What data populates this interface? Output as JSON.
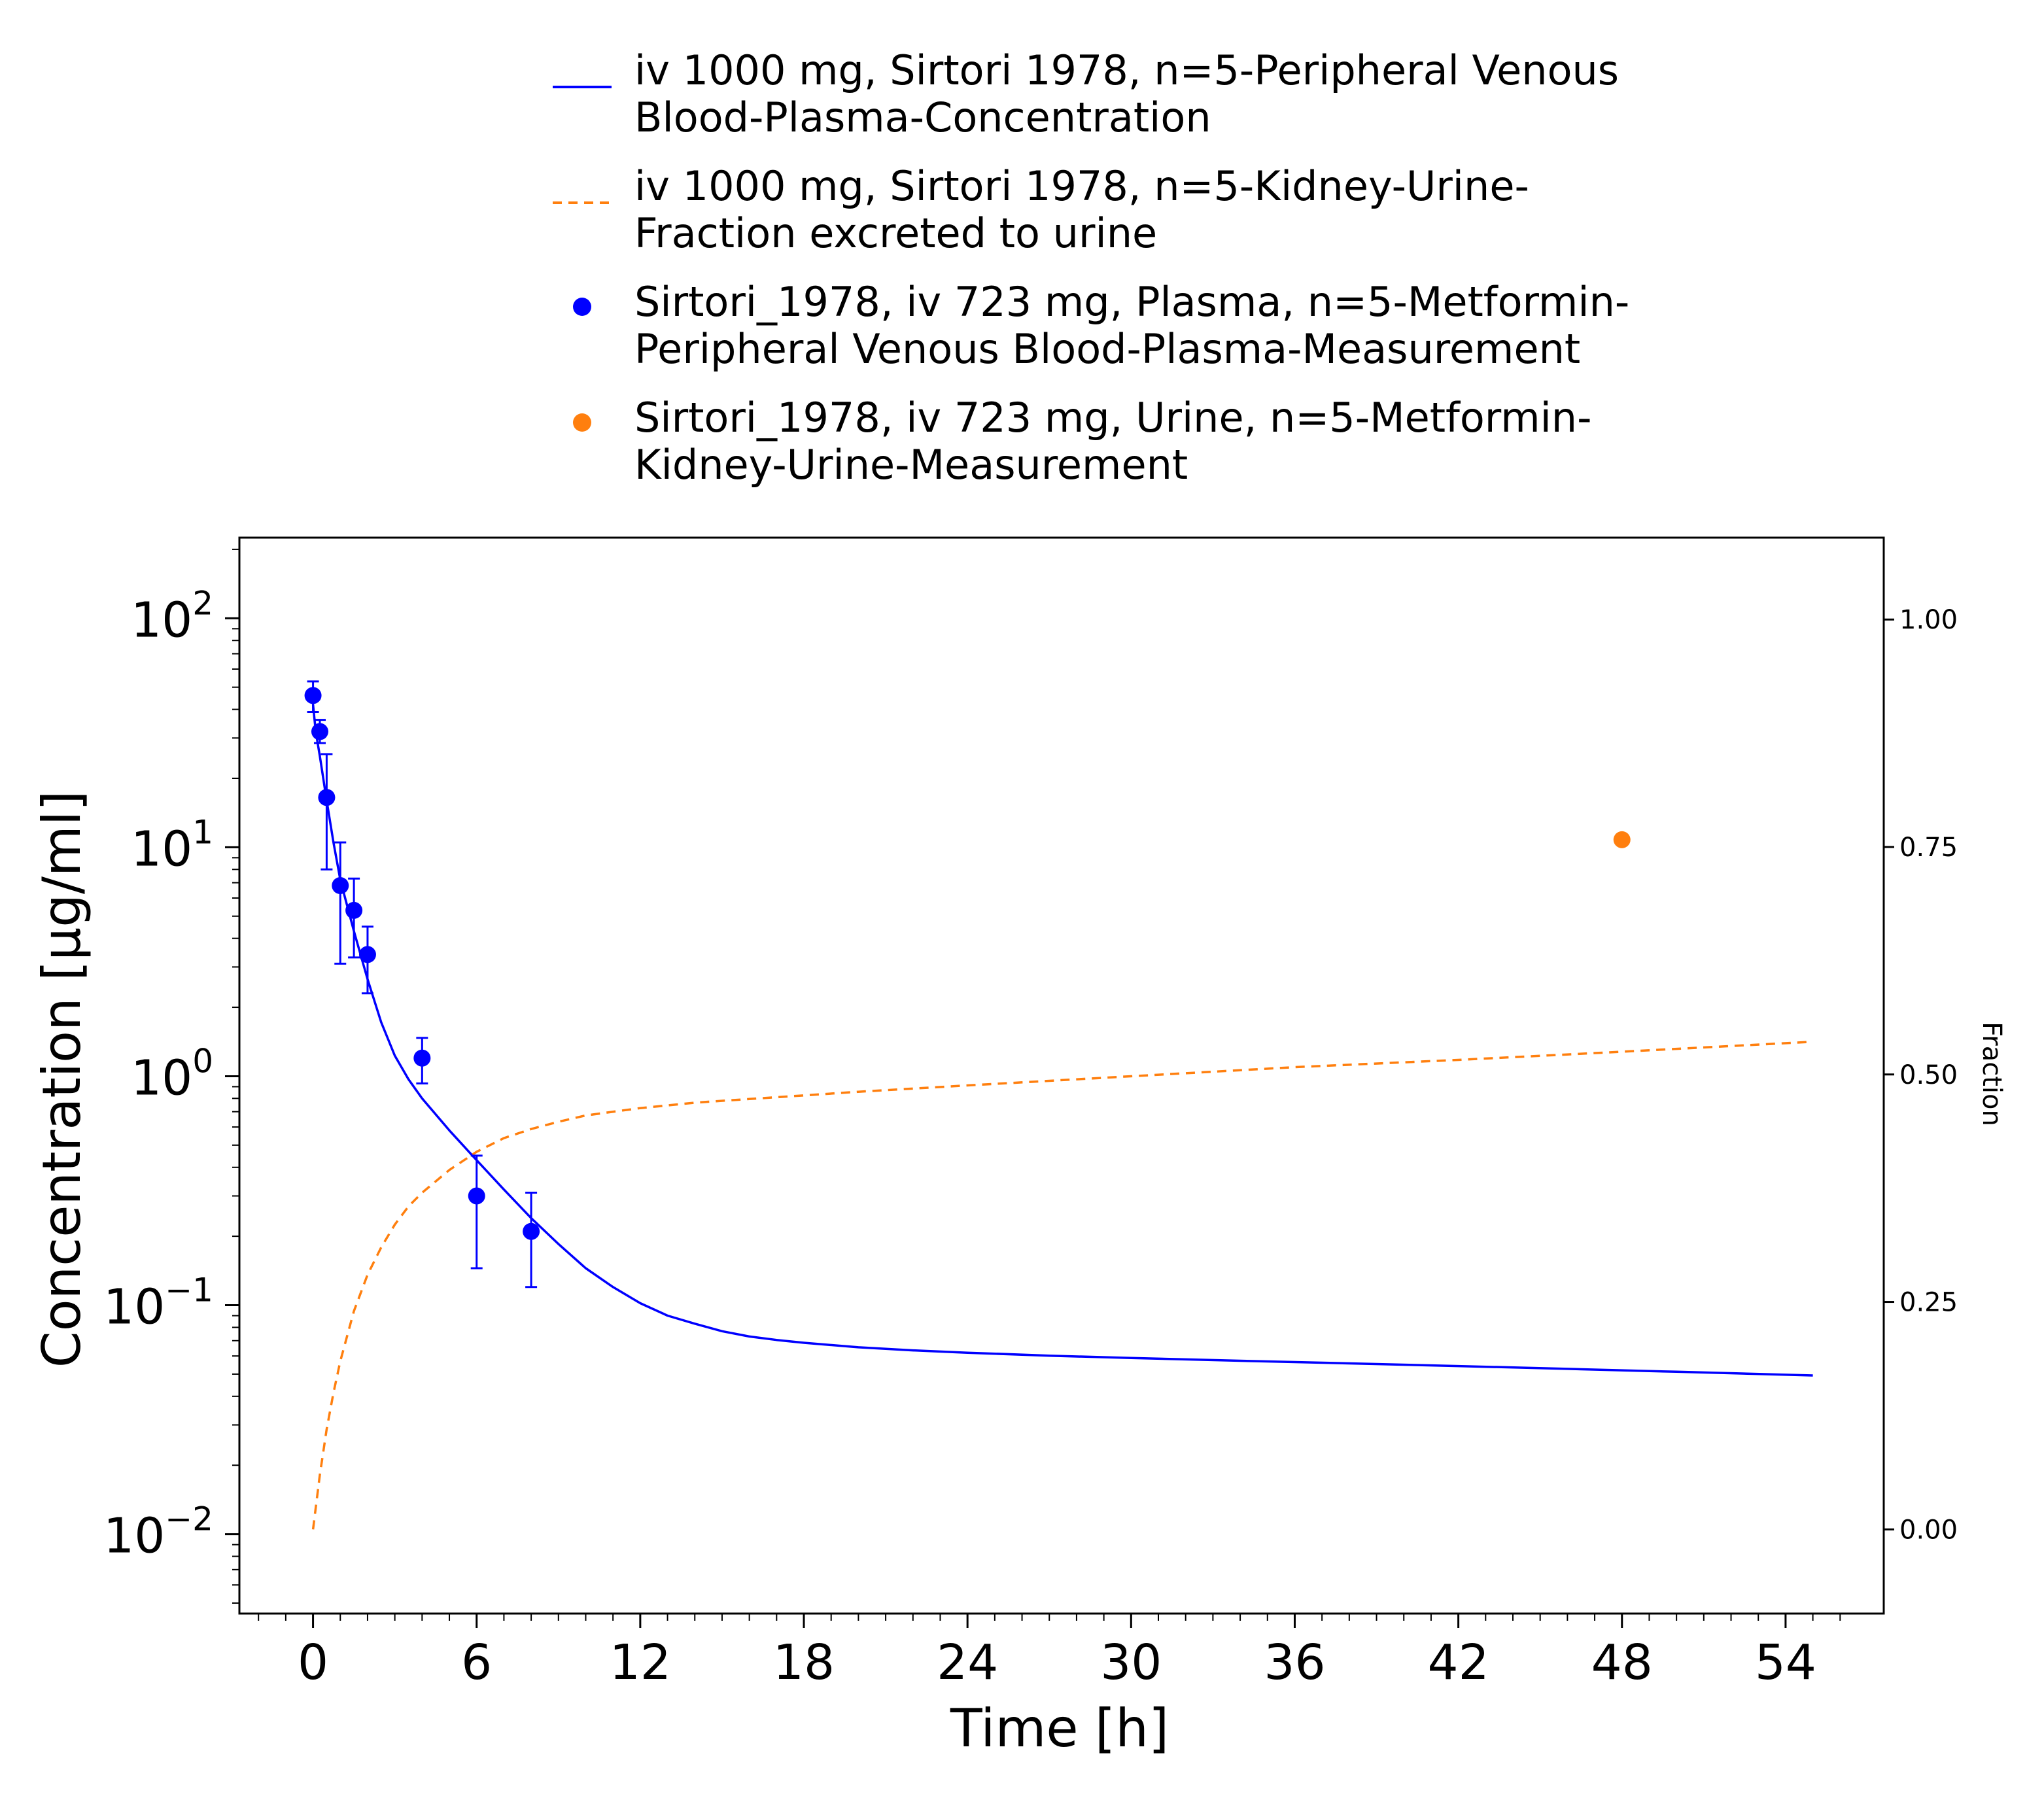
{
  "chart_data": {
    "type": "line",
    "xlabel": "Time [h]",
    "ylabel": "Concentration [µg/ml]",
    "y2label": "Fraction",
    "xlim": [
      -2.7,
      57.6
    ],
    "ylim": [
      0.0045,
      225
    ],
    "y2lim": [
      -0.0925,
      1.09
    ],
    "yscale": "log",
    "x_ticks": [
      "0",
      "6",
      "12",
      "18",
      "24",
      "30",
      "36",
      "42",
      "48",
      "54"
    ],
    "y_ticks": [
      {
        "value": 0.01,
        "base": "10",
        "exp": "−2"
      },
      {
        "value": 0.1,
        "base": "10",
        "exp": "−1"
      },
      {
        "value": 1,
        "base": "10",
        "exp": "0"
      },
      {
        "value": 10,
        "base": "10",
        "exp": "1"
      },
      {
        "value": 100,
        "base": "10",
        "exp": "2"
      }
    ],
    "y2_ticks": [
      "0.00",
      "0.25",
      "0.50",
      "0.75",
      "1.00"
    ],
    "grid": false,
    "legend_position": "top-center",
    "series": [
      {
        "name": "iv 1000 mg, Sirtori 1978, n=5-Peripheral Venous Blood-Plasma-Concentration",
        "kind": "line",
        "axis": "left",
        "color": "#0000ff",
        "x": [
          0,
          0.1,
          0.25,
          0.5,
          0.75,
          1,
          1.5,
          2,
          2.5,
          3,
          3.5,
          4,
          5,
          6,
          7,
          8,
          9,
          10,
          11,
          12,
          13,
          14,
          15,
          16,
          17,
          18,
          20,
          22,
          24,
          27,
          30,
          34,
          38,
          42,
          46,
          50,
          55
        ],
        "y": [
          42,
          32,
          25,
          16,
          10.5,
          7.2,
          4.3,
          2.65,
          1.72,
          1.23,
          0.97,
          0.8,
          0.58,
          0.43,
          0.32,
          0.24,
          0.185,
          0.145,
          0.12,
          0.102,
          0.09,
          0.083,
          0.077,
          0.073,
          0.0705,
          0.0685,
          0.0655,
          0.0635,
          0.062,
          0.0602,
          0.0588,
          0.0572,
          0.0557,
          0.0542,
          0.0527,
          0.0512,
          0.0493
        ]
      },
      {
        "name": "iv 1000 mg, Sirtori 1978, n=5-Kidney-Urine-Fraction excreted to urine",
        "kind": "dashed-line",
        "axis": "right",
        "color": "#ff7f0e",
        "x": [
          0,
          0.25,
          0.5,
          0.75,
          1,
          1.5,
          2,
          2.5,
          3,
          3.5,
          4,
          5,
          6,
          7,
          8,
          9,
          10,
          12,
          14,
          16,
          18,
          20,
          24,
          30,
          36,
          42,
          48,
          55
        ],
        "y": [
          0.0,
          0.06,
          0.11,
          0.15,
          0.185,
          0.24,
          0.28,
          0.31,
          0.335,
          0.355,
          0.37,
          0.395,
          0.415,
          0.43,
          0.44,
          0.448,
          0.455,
          0.463,
          0.469,
          0.473,
          0.477,
          0.481,
          0.488,
          0.498,
          0.508,
          0.516,
          0.525,
          0.536
        ]
      },
      {
        "name": "Sirtori_1978, iv 723 mg, Plasma, n=5-Metformin-Peripheral Venous Blood-Plasma-Measurement",
        "kind": "scatter",
        "axis": "left",
        "color": "#0000ff",
        "x": [
          0,
          0.25,
          0.5,
          1,
          1.5,
          2,
          4,
          6,
          8
        ],
        "y": [
          46,
          32,
          16.5,
          6.8,
          5.3,
          3.4,
          1.2,
          0.3,
          0.21
        ],
        "err_low": [
          39,
          28.5,
          8,
          3.1,
          3.3,
          2.3,
          0.93,
          0.145,
          0.12
        ],
        "err_high": [
          53,
          36,
          25.5,
          10.5,
          7.3,
          4.5,
          1.47,
          0.45,
          0.31
        ]
      },
      {
        "name": "Sirtori_1978, iv 723 mg, Urine, n=5-Metformin-Kidney-Urine-Measurement",
        "kind": "scatter",
        "axis": "right",
        "color": "#ff7f0e",
        "x": [
          48
        ],
        "y": [
          0.758
        ]
      }
    ]
  },
  "legend": {
    "items": [
      {
        "label": "iv 1000 mg, Sirtori 1978, n=5-Peripheral Venous Blood-Plasma-Concentration",
        "style": "solid-line",
        "color": "#0000ff"
      },
      {
        "label": "iv 1000 mg, Sirtori 1978, n=5-Kidney-Urine-Fraction excreted to urine",
        "style": "dashed-line",
        "color": "#ff7f0e"
      },
      {
        "label": "Sirtori_1978, iv 723 mg, Plasma, n=5-Metformin-Peripheral Venous Blood-Plasma-Measurement",
        "style": "marker",
        "color": "#0000ff"
      },
      {
        "label": "Sirtori_1978, iv 723 mg, Urine, n=5-Metformin-Kidney-Urine-Measurement",
        "style": "marker",
        "color": "#ff7f0e"
      }
    ]
  }
}
